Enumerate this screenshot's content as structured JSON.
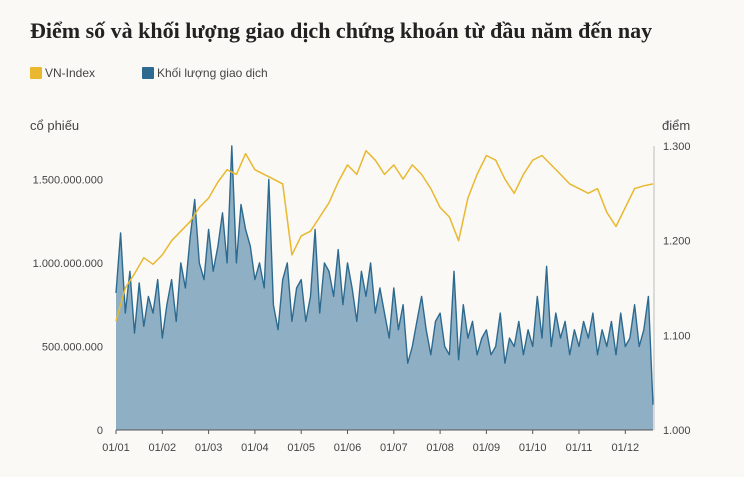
{
  "title": "Điểm số và khối lượng giao dịch chứng khoán từ đầu năm đến nay",
  "legend": [
    {
      "label": "VN-Index",
      "color": "#e9b82f"
    },
    {
      "label": "Khối lượng giao dịch",
      "color": "#2d6a90"
    }
  ],
  "left_axis_label": "cổ phiếu",
  "right_axis_label": "điểm",
  "chart_data": {
    "type": "area",
    "title": "Điểm số và khối lượng giao dịch chứng khoán từ đầu năm đến nay",
    "x_ticks": [
      "01/01",
      "01/02",
      "01/03",
      "01/04",
      "01/05",
      "01/06",
      "01/07",
      "01/08",
      "01/09",
      "01/10",
      "01/11",
      "01/12"
    ],
    "y_left": {
      "label": "cổ phiếu",
      "lim": [
        0,
        1700000000
      ],
      "ticks": [
        0,
        500000000,
        1000000000,
        1500000000
      ],
      "tick_labels": [
        "0",
        "500.000.000",
        "1.000.000.000",
        "1.500.000.000"
      ]
    },
    "y_right": {
      "label": "điểm",
      "lim": [
        1000,
        1300
      ],
      "ticks": [
        1000,
        1100,
        1200,
        1300
      ],
      "tick_labels": [
        "1.000",
        "1.100",
        "1.200",
        "1.300"
      ]
    },
    "grid": false,
    "legend_position": "top-left",
    "series": [
      {
        "name": "VN-Index",
        "type": "line",
        "axis": "right",
        "color": "#e9b82f",
        "x_month": [
          0,
          0.2,
          0.4,
          0.6,
          0.8,
          1.0,
          1.2,
          1.4,
          1.6,
          1.8,
          2.0,
          2.2,
          2.4,
          2.6,
          2.8,
          3.0,
          3.2,
          3.4,
          3.6,
          3.8,
          4.0,
          4.2,
          4.4,
          4.6,
          4.8,
          5.0,
          5.2,
          5.4,
          5.6,
          5.8,
          6.0,
          6.2,
          6.4,
          6.6,
          6.8,
          7.0,
          7.2,
          7.4,
          7.6,
          7.8,
          8.0,
          8.2,
          8.4,
          8.6,
          8.8,
          9.0,
          9.2,
          9.4,
          9.6,
          9.8,
          10.0,
          10.2,
          10.4,
          10.6,
          10.8,
          11.0,
          11.2,
          11.4,
          11.6
        ],
        "values": [
          1115,
          1150,
          1165,
          1182,
          1175,
          1185,
          1200,
          1210,
          1220,
          1235,
          1245,
          1262,
          1275,
          1270,
          1292,
          1275,
          1270,
          1265,
          1260,
          1185,
          1205,
          1210,
          1225,
          1240,
          1262,
          1280,
          1270,
          1295,
          1285,
          1270,
          1280,
          1265,
          1280,
          1270,
          1255,
          1235,
          1225,
          1200,
          1245,
          1270,
          1290,
          1285,
          1265,
          1250,
          1270,
          1285,
          1290,
          1280,
          1270,
          1260,
          1255,
          1250,
          1255,
          1230,
          1215,
          1235,
          1255,
          1258,
          1260
        ]
      },
      {
        "name": "Khối lượng giao dịch",
        "type": "area",
        "axis": "left",
        "color": "#2d6a90",
        "x_month": [
          0,
          0.1,
          0.2,
          0.3,
          0.4,
          0.5,
          0.6,
          0.7,
          0.8,
          0.9,
          1.0,
          1.1,
          1.2,
          1.3,
          1.4,
          1.5,
          1.6,
          1.7,
          1.8,
          1.9,
          2.0,
          2.1,
          2.2,
          2.3,
          2.4,
          2.5,
          2.6,
          2.7,
          2.8,
          2.9,
          3.0,
          3.1,
          3.2,
          3.3,
          3.4,
          3.5,
          3.6,
          3.7,
          3.8,
          3.9,
          4.0,
          4.1,
          4.2,
          4.3,
          4.4,
          4.5,
          4.6,
          4.7,
          4.8,
          4.9,
          5.0,
          5.1,
          5.2,
          5.3,
          5.4,
          5.5,
          5.6,
          5.7,
          5.8,
          5.9,
          6.0,
          6.1,
          6.2,
          6.3,
          6.4,
          6.5,
          6.6,
          6.7,
          6.8,
          6.9,
          7.0,
          7.1,
          7.2,
          7.3,
          7.4,
          7.5,
          7.6,
          7.7,
          7.8,
          7.9,
          8.0,
          8.1,
          8.2,
          8.3,
          8.4,
          8.5,
          8.6,
          8.7,
          8.8,
          8.9,
          9.0,
          9.1,
          9.2,
          9.3,
          9.4,
          9.5,
          9.6,
          9.7,
          9.8,
          9.9,
          10.0,
          10.1,
          10.2,
          10.3,
          10.4,
          10.5,
          10.6,
          10.7,
          10.8,
          10.9,
          11.0,
          11.1,
          11.2,
          11.3,
          11.4,
          11.5,
          11.6
        ],
        "values": [
          820000000,
          1180000000,
          700000000,
          950000000,
          580000000,
          880000000,
          620000000,
          800000000,
          700000000,
          900000000,
          550000000,
          750000000,
          900000000,
          650000000,
          1000000000,
          850000000,
          1150000000,
          1380000000,
          1000000000,
          900000000,
          1200000000,
          950000000,
          1100000000,
          1300000000,
          1000000000,
          1700000000,
          1000000000,
          1350000000,
          1200000000,
          1100000000,
          900000000,
          1000000000,
          850000000,
          1500000000,
          750000000,
          600000000,
          900000000,
          1000000000,
          650000000,
          850000000,
          900000000,
          650000000,
          800000000,
          1200000000,
          700000000,
          1000000000,
          950000000,
          800000000,
          1080000000,
          750000000,
          1000000000,
          850000000,
          650000000,
          950000000,
          800000000,
          1000000000,
          700000000,
          850000000,
          700000000,
          550000000,
          850000000,
          600000000,
          750000000,
          400000000,
          500000000,
          650000000,
          800000000,
          600000000,
          450000000,
          650000000,
          700000000,
          500000000,
          450000000,
          950000000,
          420000000,
          750000000,
          550000000,
          650000000,
          450000000,
          550000000,
          600000000,
          450000000,
          500000000,
          700000000,
          400000000,
          550000000,
          500000000,
          650000000,
          450000000,
          600000000,
          500000000,
          800000000,
          550000000,
          980000000,
          500000000,
          700000000,
          550000000,
          650000000,
          450000000,
          600000000,
          500000000,
          650000000,
          550000000,
          700000000,
          450000000,
          600000000,
          500000000,
          650000000,
          450000000,
          700000000,
          500000000,
          550000000,
          750000000,
          500000000,
          600000000,
          800000000,
          150000000
        ]
      }
    ]
  }
}
